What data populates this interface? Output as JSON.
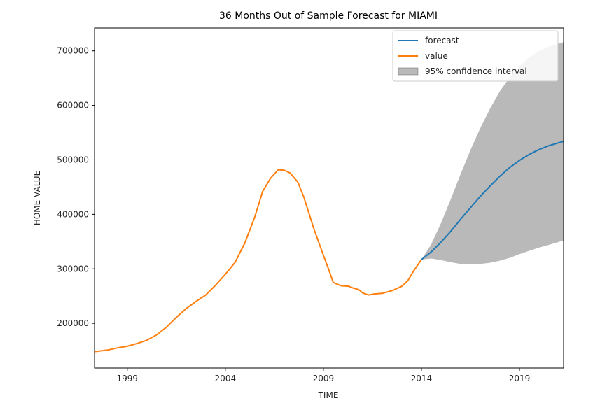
{
  "chart_data": {
    "type": "line",
    "title": "36 Months Out of Sample Forecast for MIAMI",
    "xlabel": "TIME",
    "ylabel": "HOME VALUE",
    "xlim": [
      1997.33,
      2021.25
    ],
    "ylim": [
      118000,
      742000
    ],
    "x_ticks": [
      1999,
      2004,
      2009,
      2014,
      2019
    ],
    "y_ticks": [
      200000,
      300000,
      400000,
      500000,
      600000,
      700000
    ],
    "grid": false,
    "legend_position": "top-right",
    "series": [
      {
        "name": "forecast",
        "color": "#1f77b4",
        "points": [
          [
            2014.0,
            317000
          ],
          [
            2014.5,
            331000
          ],
          [
            2015.0,
            349000
          ],
          [
            2015.5,
            369000
          ],
          [
            2016.0,
            391000
          ],
          [
            2016.5,
            412000
          ],
          [
            2017.0,
            433000
          ],
          [
            2017.5,
            452000
          ],
          [
            2018.0,
            470000
          ],
          [
            2018.5,
            486000
          ],
          [
            2019.0,
            499000
          ],
          [
            2019.5,
            510000
          ],
          [
            2020.0,
            519000
          ],
          [
            2020.5,
            526000
          ],
          [
            2021.25,
            534000
          ]
        ]
      },
      {
        "name": "value",
        "color": "#ff7f0e",
        "points": [
          [
            1997.33,
            148000
          ],
          [
            1998.0,
            151000
          ],
          [
            1998.5,
            155000
          ],
          [
            1999.0,
            158000
          ],
          [
            1999.5,
            163000
          ],
          [
            2000.0,
            169000
          ],
          [
            2000.5,
            179000
          ],
          [
            2001.0,
            193000
          ],
          [
            2001.5,
            211000
          ],
          [
            2002.0,
            227000
          ],
          [
            2002.5,
            240000
          ],
          [
            2003.0,
            252000
          ],
          [
            2003.5,
            270000
          ],
          [
            2004.0,
            290000
          ],
          [
            2004.5,
            312000
          ],
          [
            2005.0,
            348000
          ],
          [
            2005.5,
            395000
          ],
          [
            2005.9,
            442000
          ],
          [
            2006.3,
            466000
          ],
          [
            2006.7,
            482000
          ],
          [
            2007.0,
            481000
          ],
          [
            2007.3,
            476000
          ],
          [
            2007.7,
            459000
          ],
          [
            2008.0,
            432000
          ],
          [
            2008.5,
            375000
          ],
          [
            2009.0,
            325000
          ],
          [
            2009.3,
            296000
          ],
          [
            2009.5,
            275000
          ],
          [
            2009.9,
            269000
          ],
          [
            2010.3,
            268000
          ],
          [
            2010.5,
            265000
          ],
          [
            2010.8,
            262000
          ],
          [
            2011.0,
            256000
          ],
          [
            2011.3,
            252000
          ],
          [
            2011.6,
            254000
          ],
          [
            2012.0,
            255000
          ],
          [
            2012.5,
            260000
          ],
          [
            2013.0,
            268000
          ],
          [
            2013.3,
            278000
          ],
          [
            2013.6,
            296000
          ],
          [
            2014.0,
            317000
          ]
        ]
      }
    ],
    "confidence_interval": {
      "name": "95% confidence interval",
      "color": "#808080",
      "opacity": 0.55,
      "lower": [
        [
          2014.0,
          317000
        ],
        [
          2014.5,
          319000
        ],
        [
          2015.0,
          316000
        ],
        [
          2015.5,
          312000
        ],
        [
          2016.0,
          309000
        ],
        [
          2016.5,
          308000
        ],
        [
          2017.0,
          309000
        ],
        [
          2017.5,
          311000
        ],
        [
          2018.0,
          315000
        ],
        [
          2018.5,
          320000
        ],
        [
          2019.0,
          327000
        ],
        [
          2019.5,
          333000
        ],
        [
          2020.0,
          339000
        ],
        [
          2020.5,
          344000
        ],
        [
          2021.25,
          352000
        ]
      ],
      "upper": [
        [
          2014.0,
          317000
        ],
        [
          2014.5,
          345000
        ],
        [
          2015.0,
          384000
        ],
        [
          2015.5,
          428000
        ],
        [
          2016.0,
          474000
        ],
        [
          2016.5,
          518000
        ],
        [
          2017.0,
          558000
        ],
        [
          2017.5,
          594000
        ],
        [
          2018.0,
          626000
        ],
        [
          2018.5,
          651000
        ],
        [
          2019.0,
          672000
        ],
        [
          2019.5,
          688000
        ],
        [
          2020.0,
          700000
        ],
        [
          2020.5,
          708000
        ],
        [
          2021.25,
          716000
        ]
      ]
    }
  }
}
